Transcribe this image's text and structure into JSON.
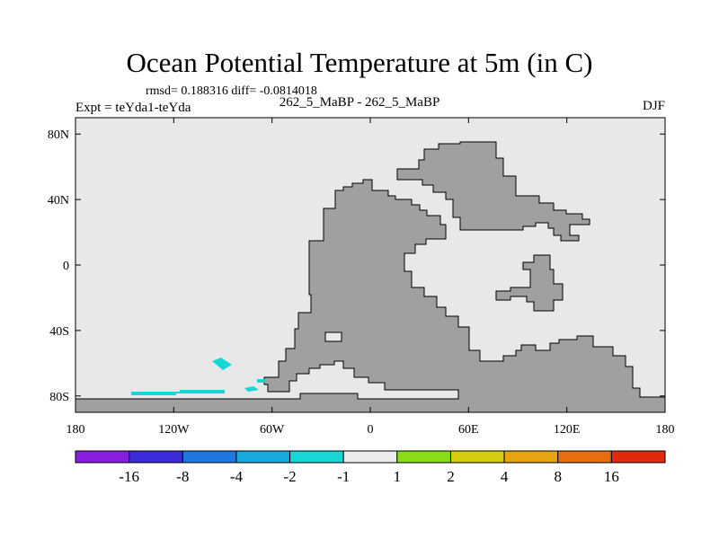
{
  "chart_data": {
    "type": "contour-map",
    "title": "Ocean Potential Temperature at 5m (in C)",
    "stats": "rmsd= 0.188316 diff= -0.0814018",
    "left_label": "Expt = teYda1-teYda",
    "center_label": "262_5_MaBP - 262_5_MaBP",
    "right_label": "DJF",
    "x_ticks": [
      "180",
      "120W",
      "60W",
      "0",
      "60E",
      "120E",
      "180"
    ],
    "x_values": [
      -180,
      -120,
      -60,
      0,
      60,
      120,
      180
    ],
    "y_ticks": [
      "80N",
      "40N",
      "0",
      "40S",
      "80S"
    ],
    "y_values": [
      80,
      40,
      0,
      -40,
      -80
    ],
    "xlim": [
      -180,
      180
    ],
    "ylim": [
      -90,
      90
    ],
    "colorbar": {
      "colors": [
        "#8a1ee0",
        "#3b2bd8",
        "#1f78e0",
        "#18a8e0",
        "#16d6d6",
        "#ececec",
        "#88dd18",
        "#d6cc10",
        "#e6a412",
        "#e66e10",
        "#e02a10"
      ],
      "labels": [
        "-16",
        "-8",
        "-4",
        "-2",
        "-1",
        "1",
        "2",
        "4",
        "8",
        "16"
      ]
    }
  }
}
